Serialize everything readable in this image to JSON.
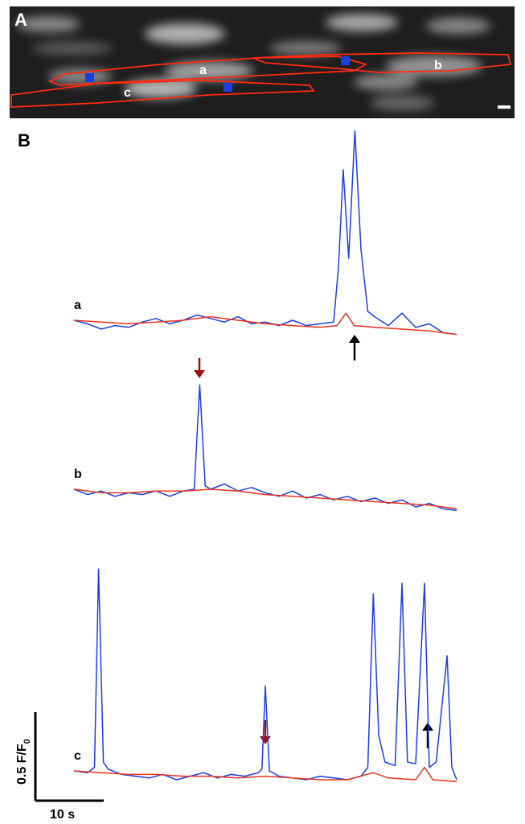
{
  "panel_a": {
    "label": "A",
    "cell_labels": [
      "a",
      "b",
      "c"
    ]
  },
  "panel_b": {
    "label": "B"
  },
  "chart_data": [
    {
      "type": "line",
      "label": "a",
      "series": [
        {
          "color": "#1a3fe0",
          "x": [
            0,
            2,
            4,
            6,
            8,
            10,
            12,
            14,
            16,
            18,
            20,
            22,
            24,
            26,
            28,
            30,
            32,
            34,
            36,
            38,
            38.7,
            39.4,
            40.2,
            41.1,
            42,
            43,
            44,
            46,
            48,
            50,
            52,
            54,
            56
          ],
          "values": [
            1.0,
            0.98,
            0.95,
            0.97,
            0.96,
            0.99,
            1.01,
            0.98,
            1.0,
            1.03,
            1.01,
            0.99,
            1.02,
            0.98,
            0.99,
            0.97,
            1.0,
            0.97,
            0.98,
            0.99,
            1.3,
            1.85,
            1.35,
            2.07,
            1.4,
            1.05,
            1.02,
            0.97,
            1.04,
            0.96,
            0.98,
            0.93,
            0.92
          ]
        },
        {
          "color": "#e8321e",
          "x": [
            0,
            4,
            8,
            12,
            16,
            20,
            24,
            28,
            32,
            36,
            38.5,
            39.8,
            41,
            44,
            48,
            52,
            56
          ],
          "values": [
            1.0,
            0.99,
            0.98,
            0.99,
            1.0,
            1.02,
            1.0,
            0.98,
            0.97,
            0.96,
            0.97,
            1.04,
            0.97,
            0.96,
            0.95,
            0.94,
            0.92
          ]
        }
      ]
    },
    {
      "type": "line",
      "label": "b",
      "series": [
        {
          "color": "#1a3fe0",
          "x": [
            0,
            2,
            4,
            6,
            8,
            10,
            12,
            14,
            16,
            17.6,
            18.4,
            19.2,
            20,
            22,
            24,
            26,
            28,
            30,
            32,
            34,
            36,
            38,
            40,
            42,
            44,
            46,
            48,
            50,
            52,
            54,
            56
          ],
          "values": [
            1.0,
            0.97,
            0.99,
            0.96,
            0.98,
            0.97,
            0.99,
            0.96,
            0.99,
            1.0,
            1.59,
            1.02,
            1.0,
            1.03,
            0.99,
            1.01,
            0.98,
            0.96,
            0.99,
            0.95,
            0.97,
            0.94,
            0.96,
            0.93,
            0.95,
            0.92,
            0.94,
            0.9,
            0.92,
            0.89,
            0.88
          ]
        },
        {
          "color": "#e8321e",
          "x": [
            0,
            4,
            8,
            12,
            16,
            20,
            24,
            28,
            32,
            36,
            40,
            44,
            48,
            52,
            56
          ],
          "values": [
            1.0,
            0.98,
            0.98,
            0.99,
            0.99,
            1.0,
            0.99,
            0.97,
            0.96,
            0.95,
            0.94,
            0.93,
            0.92,
            0.91,
            0.89
          ]
        }
      ]
    },
    {
      "type": "line",
      "label": "c",
      "series": [
        {
          "color": "#1a3fe0",
          "x": [
            0,
            2,
            3,
            3.6,
            4.3,
            5,
            7,
            9,
            11,
            13,
            15,
            17,
            19,
            21,
            23,
            25,
            27,
            27.5,
            28,
            28.6,
            30,
            32,
            34,
            36,
            38,
            40,
            42,
            43,
            43.8,
            44.6,
            45.5,
            47,
            48,
            48.8,
            50,
            51.3,
            52,
            53,
            54.6,
            55.3,
            56
          ],
          "values": [
            1.0,
            0.99,
            1.02,
            2.14,
            1.05,
            1.01,
            0.98,
            0.97,
            0.96,
            0.98,
            0.95,
            0.97,
            0.99,
            0.96,
            0.98,
            0.97,
            0.99,
            1.01,
            1.48,
            1.0,
            0.97,
            0.96,
            0.95,
            0.97,
            0.96,
            0.95,
            0.97,
            1.02,
            2.0,
            1.2,
            1.05,
            1.03,
            2.06,
            1.05,
            1.04,
            2.06,
            1.02,
            1.05,
            1.65,
            1.02,
            0.95
          ]
        },
        {
          "color": "#e8321e",
          "x": [
            0,
            4,
            8,
            12,
            16,
            20,
            24,
            28,
            32,
            36,
            40,
            43.8,
            46,
            50,
            51.3,
            52.5,
            56
          ],
          "values": [
            1.0,
            0.99,
            0.98,
            0.98,
            0.97,
            0.97,
            0.96,
            0.97,
            0.96,
            0.95,
            0.95,
            0.99,
            0.96,
            0.95,
            1.02,
            0.95,
            0.94
          ]
        }
      ]
    }
  ],
  "scale_bar": {
    "y_value": 0.5,
    "y_label": "0.5 F/F",
    "y_label_sub": "0",
    "x_value": 10,
    "x_label": "10 s"
  }
}
